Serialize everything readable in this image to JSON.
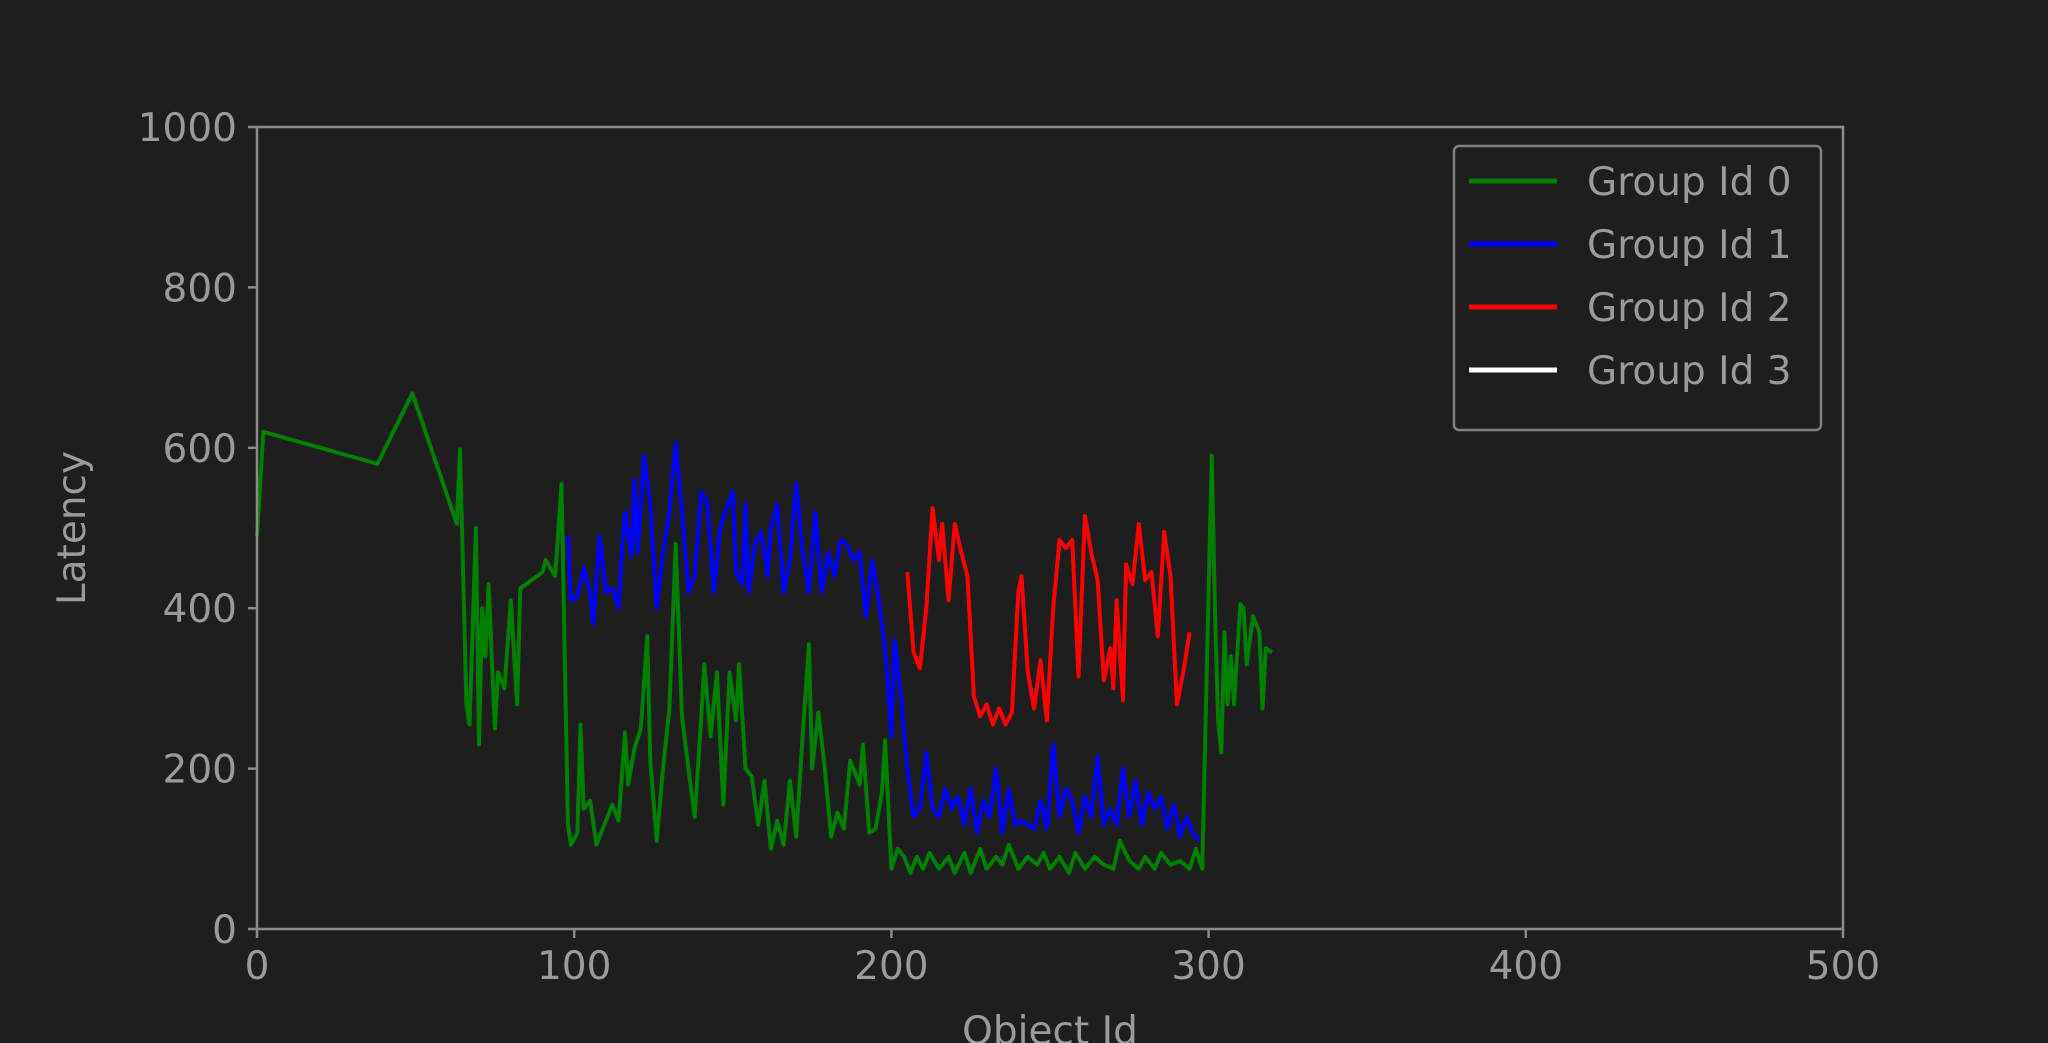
{
  "chart_data": {
    "type": "line",
    "x_label": "Object Id",
    "y_label": "Latency",
    "xlim": [
      0,
      500
    ],
    "xticks": [
      0,
      100,
      200,
      300,
      400,
      500
    ],
    "ylim": [
      0,
      1000
    ],
    "yticks": [
      0,
      200,
      400,
      600,
      800,
      1000
    ],
    "grid": false,
    "legend": "upper right",
    "series": [
      {
        "name": "Group Id 0",
        "color": "#008000",
        "x": [
          0,
          2,
          38,
          49,
          63,
          64,
          66,
          67,
          69,
          70,
          71,
          72,
          73,
          75,
          76,
          78,
          80,
          82,
          83,
          90,
          91,
          94,
          96,
          98,
          99,
          101,
          102,
          103,
          105,
          107,
          109,
          112,
          114,
          116,
          117,
          119,
          121,
          123,
          124,
          126,
          128,
          130,
          132,
          134,
          136,
          138,
          140,
          141,
          143,
          145,
          147,
          149,
          151,
          152,
          154,
          156,
          158,
          160,
          162,
          164,
          166,
          168,
          170,
          172,
          174,
          175,
          177,
          179,
          181,
          183,
          185,
          187,
          190,
          191,
          193,
          195,
          197,
          198,
          200,
          202,
          204,
          206,
          208,
          210,
          212,
          215,
          218,
          220,
          223,
          225,
          228,
          230,
          233,
          235,
          237,
          240,
          243,
          246,
          248,
          250,
          253,
          256,
          258,
          261,
          264,
          267,
          270,
          272,
          275,
          278,
          280,
          283,
          285,
          288,
          291,
          294,
          296,
          298,
          299,
          301,
          302,
          303,
          304,
          305,
          306,
          307,
          308,
          310,
          311,
          312,
          314,
          316,
          317,
          318,
          320
        ],
        "values": [
          490,
          620,
          580,
          668,
          505,
          598,
          280,
          255,
          500,
          230,
          400,
          340,
          430,
          250,
          320,
          300,
          410,
          280,
          425,
          445,
          460,
          440,
          555,
          130,
          105,
          120,
          255,
          150,
          160,
          105,
          125,
          155,
          135,
          245,
          180,
          225,
          250,
          365,
          210,
          110,
          200,
          275,
          480,
          265,
          200,
          140,
          260,
          330,
          240,
          320,
          155,
          320,
          260,
          330,
          200,
          190,
          130,
          185,
          100,
          135,
          105,
          185,
          115,
          240,
          355,
          200,
          270,
          200,
          115,
          145,
          125,
          210,
          180,
          230,
          120,
          125,
          170,
          235,
          75,
          100,
          90,
          70,
          90,
          75,
          95,
          75,
          90,
          70,
          95,
          70,
          100,
          75,
          90,
          80,
          105,
          75,
          90,
          80,
          95,
          75,
          90,
          70,
          95,
          75,
          90,
          80,
          75,
          110,
          85,
          75,
          90,
          75,
          95,
          80,
          85,
          75,
          100,
          75,
          250,
          590,
          400,
          260,
          220,
          370,
          280,
          340,
          280,
          405,
          400,
          330,
          390,
          370,
          275,
          350,
          345
        ]
      },
      {
        "name": "Group Id 1",
        "color": "#0000ff",
        "x": [
          98,
          99,
          101,
          103,
          105,
          106,
          108,
          110,
          112,
          114,
          115,
          116,
          118,
          119,
          120,
          122,
          124,
          126,
          128,
          130,
          132,
          134,
          136,
          138,
          140,
          142,
          144,
          146,
          148,
          150,
          151,
          153,
          154,
          155,
          157,
          159,
          161,
          162,
          164,
          166,
          168,
          170,
          172,
          174,
          176,
          178,
          180,
          182,
          184,
          186,
          188,
          190,
          192,
          194,
          196,
          198,
          200,
          201,
          203,
          205,
          207,
          209,
          211,
          213,
          215,
          217,
          219,
          221,
          223,
          225,
          227,
          229,
          231,
          233,
          235,
          237,
          239,
          241,
          243,
          245,
          247,
          249,
          251,
          253,
          255,
          257,
          259,
          261,
          263,
          265,
          267,
          269,
          271,
          273,
          275,
          277,
          279,
          281,
          283,
          285,
          287,
          289,
          291,
          293,
          295,
          297
        ],
        "values": [
          490,
          410,
          415,
          450,
          420,
          380,
          490,
          420,
          425,
          400,
          470,
          520,
          465,
          560,
          470,
          590,
          530,
          400,
          470,
          520,
          605,
          520,
          420,
          440,
          545,
          530,
          420,
          500,
          525,
          545,
          445,
          430,
          530,
          420,
          480,
          495,
          440,
          500,
          530,
          420,
          460,
          555,
          470,
          420,
          520,
          420,
          470,
          440,
          485,
          480,
          460,
          470,
          390,
          460,
          410,
          350,
          240,
          360,
          290,
          200,
          140,
          150,
          220,
          150,
          140,
          175,
          150,
          165,
          130,
          175,
          120,
          160,
          140,
          200,
          120,
          175,
          130,
          135,
          130,
          125,
          160,
          125,
          230,
          140,
          175,
          160,
          120,
          165,
          140,
          215,
          130,
          150,
          130,
          200,
          140,
          185,
          130,
          170,
          150,
          165,
          125,
          155,
          115,
          140,
          120,
          110
        ]
      },
      {
        "name": "Group Id 2",
        "color": "#ff0000",
        "x": [
          205,
          207,
          209,
          211,
          213,
          215,
          216,
          218,
          220,
          222,
          224,
          226,
          228,
          230,
          232,
          234,
          236,
          238,
          240,
          241,
          243,
          245,
          247,
          249,
          251,
          253,
          255,
          257,
          259,
          261,
          263,
          265,
          267,
          269,
          270,
          271,
          273,
          274,
          276,
          278,
          280,
          282,
          284,
          286,
          288,
          290,
          292,
          294
        ],
        "values": [
          445,
          345,
          325,
          400,
          525,
          460,
          505,
          410,
          505,
          470,
          440,
          290,
          265,
          280,
          255,
          275,
          255,
          270,
          420,
          440,
          320,
          275,
          335,
          260,
          400,
          485,
          475,
          485,
          315,
          515,
          470,
          435,
          310,
          350,
          300,
          410,
          285,
          455,
          430,
          505,
          435,
          445,
          365,
          495,
          440,
          280,
          320,
          370
        ]
      },
      {
        "name": "Group Id 3",
        "color": "#ffffff",
        "x": [],
        "values": []
      }
    ]
  }
}
